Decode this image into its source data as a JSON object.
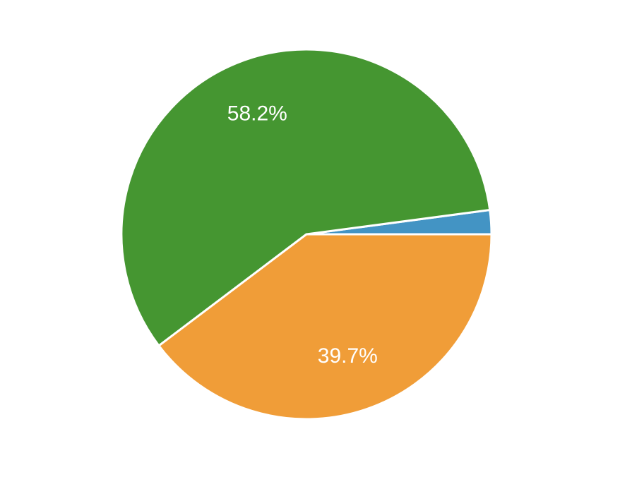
{
  "chart_data": {
    "type": "pie",
    "values": [
      2.1,
      58.2,
      39.7
    ],
    "value_labels": [
      null,
      "58.2%",
      "39.7%"
    ],
    "colors": [
      "#4394c4",
      "#459631",
      "#f09d38"
    ]
  }
}
